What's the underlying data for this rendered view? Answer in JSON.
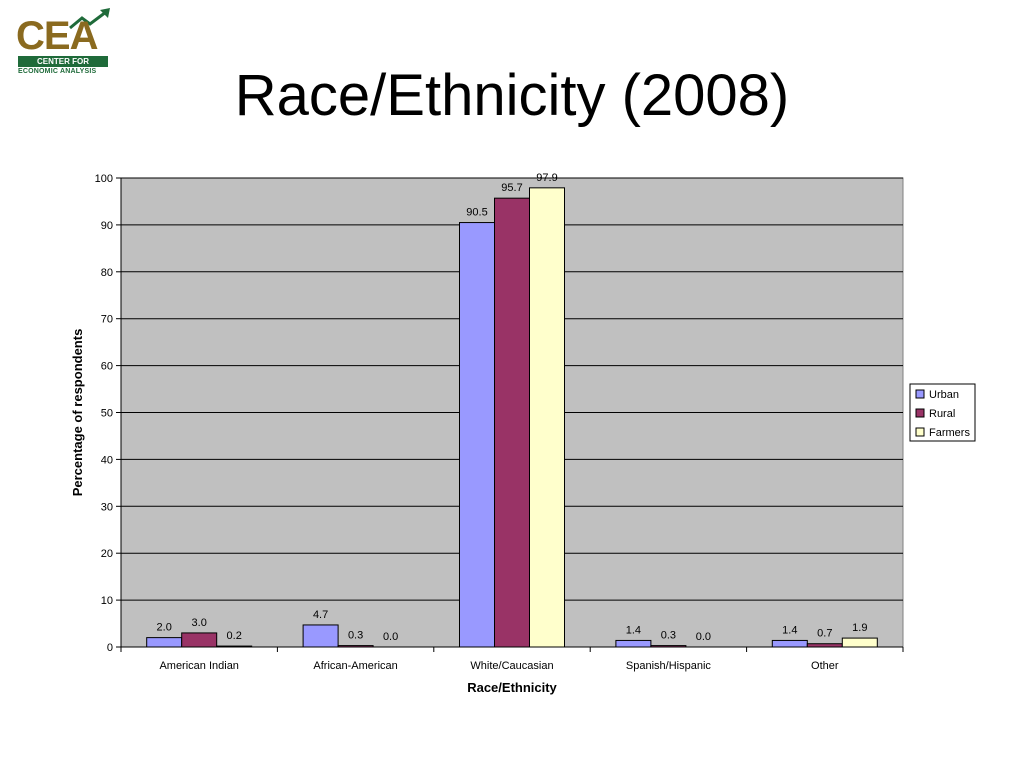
{
  "logo": {
    "acronym": "CEA",
    "band": "CENTER FOR",
    "subtitle": "ECONOMIC ANALYSIS",
    "colors": {
      "gold": "#8a6a1f",
      "green": "#1f6b3a"
    }
  },
  "chart_data": {
    "type": "bar",
    "title": "Race/Ethnicity (2008)",
    "xlabel": "Race/Ethnicity",
    "ylabel": "Percentage of respondents",
    "categories": [
      "American Indian",
      "African-American",
      "White/Caucasian",
      "Spanish/Hispanic",
      "Other"
    ],
    "series": [
      {
        "name": "Urban",
        "color": "#9999ff",
        "values": [
          2.0,
          4.7,
          90.5,
          1.4,
          1.4
        ],
        "labels": [
          "2.0",
          "4.7",
          "90.5",
          "1.4",
          "1.4"
        ]
      },
      {
        "name": "Rural",
        "color": "#993366",
        "values": [
          3.0,
          0.3,
          95.7,
          0.3,
          0.7
        ],
        "labels": [
          "3.0",
          "0.3",
          "95.7",
          "0.3",
          "0.7"
        ]
      },
      {
        "name": "Farmers",
        "color": "#ffffcc",
        "values": [
          0.2,
          0.0,
          97.9,
          0.0,
          1.9
        ],
        "labels": [
          "0.2",
          "0.0",
          "97.9",
          "0.0",
          "1.9"
        ]
      }
    ],
    "ylim": [
      0,
      100
    ],
    "yticks": [
      "0",
      "10",
      "20",
      "30",
      "40",
      "50",
      "60",
      "70",
      "80",
      "90",
      "100"
    ],
    "grid": true,
    "plot_background": "#c0c0c0",
    "legend_position": "right"
  }
}
